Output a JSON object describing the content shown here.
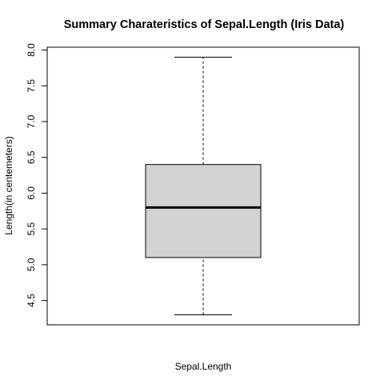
{
  "chart_data": {
    "type": "box",
    "title": "Summary Charateristics of Sepal.Length (Iris Data)",
    "xlabel": "Sepal.Length",
    "ylabel": "Length(in centemeters)",
    "ylim": [
      4.16,
      8.04
    ],
    "yticks": [
      "4.5",
      "5.0",
      "5.5",
      "6.0",
      "6.5",
      "7.0",
      "7.5",
      "8.0"
    ],
    "series": [
      {
        "min": 4.3,
        "q1": 5.1,
        "median": 5.8,
        "q3": 6.4,
        "max": 7.9
      }
    ],
    "colors": {
      "box_fill": "#d3d3d3",
      "stroke": "#000000"
    },
    "grid": false
  }
}
